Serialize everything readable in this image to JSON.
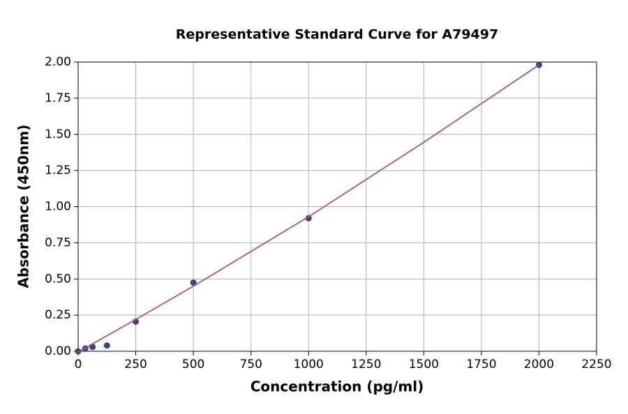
{
  "chart_data": {
    "type": "scatter",
    "title": "Representative Standard Curve for A79497",
    "xlabel": "Concentration (pg/ml)",
    "ylabel": "Absorbance (450nm)",
    "series": [
      {
        "mode": "markers",
        "color": "#2e4a78",
        "x": [
          0,
          31.25,
          62.5,
          125,
          250,
          500,
          1000,
          2000
        ],
        "values": [
          0.0,
          0.02,
          0.03,
          0.04,
          0.205,
          0.475,
          0.92,
          1.98
        ]
      },
      {
        "mode": "line",
        "color": "#b84f6e",
        "x": [
          0,
          250,
          500,
          1000,
          1500,
          2000
        ],
        "values": [
          -0.005,
          0.22,
          0.45,
          0.93,
          1.445,
          1.98
        ]
      }
    ],
    "xlim": [
      0,
      2250
    ],
    "xticks": [
      0,
      250,
      500,
      750,
      1000,
      1250,
      1500,
      1750,
      2000,
      2250
    ],
    "ylim": [
      0,
      2
    ],
    "yticks": [
      {
        "value": 0,
        "label": "0.00"
      },
      {
        "value": 0.25,
        "label": "0.25"
      },
      {
        "value": 0.5,
        "label": "0.50"
      },
      {
        "value": 0.75,
        "label": "0.75"
      },
      {
        "value": 1,
        "label": "1.00"
      },
      {
        "value": 1.25,
        "label": "1.25"
      },
      {
        "value": 1.5,
        "label": "1.50"
      },
      {
        "value": 1.75,
        "label": "1.75"
      },
      {
        "value": 2,
        "label": "2.00"
      }
    ],
    "grid": true
  }
}
